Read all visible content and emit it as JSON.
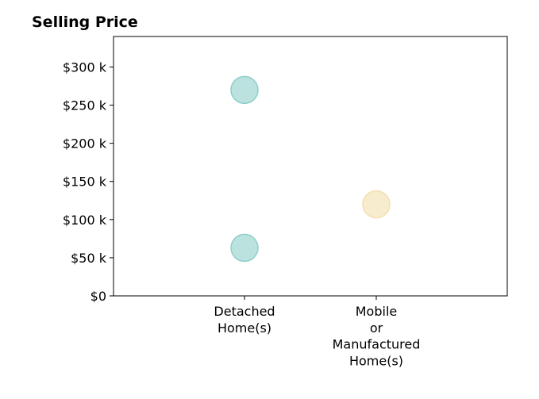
{
  "chart_data": {
    "type": "scatter",
    "title": "Selling Price",
    "xlabel": "",
    "ylabel": "",
    "categories": [
      [
        "Detached",
        "Home(s)"
      ],
      [
        "Mobile",
        "or",
        "Manufactured",
        "Home(s)"
      ]
    ],
    "ylim": [
      0,
      340000
    ],
    "y_ticks": [
      {
        "value": 0,
        "label": "$0"
      },
      {
        "value": 50000,
        "label": "$50 k"
      },
      {
        "value": 100000,
        "label": "$100 k"
      },
      {
        "value": 150000,
        "label": "$150 k"
      },
      {
        "value": 200000,
        "label": "$200 k"
      },
      {
        "value": 250000,
        "label": "$250 k"
      },
      {
        "value": 300000,
        "label": "$300 k"
      }
    ],
    "points": [
      {
        "category_index": 0,
        "value": 270000,
        "color": "#8ecfc9"
      },
      {
        "category_index": 0,
        "value": 63000,
        "color": "#8ecfc9"
      },
      {
        "category_index": 1,
        "value": 120000,
        "color": "#f4dfae"
      }
    ],
    "grid": false,
    "legend": "none"
  }
}
